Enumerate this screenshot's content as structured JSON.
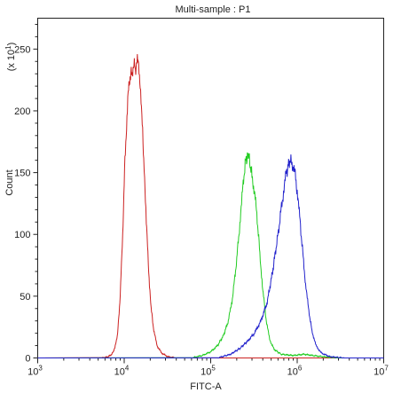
{
  "chart_data": {
    "type": "line",
    "title": "Multi-sample : P1",
    "xlabel": "FITC-A",
    "ylabel": "Count",
    "y_scale_note": "(x 10",
    "y_scale_exp": "1",
    "y_scale_close": ")",
    "x_scale": "log",
    "xlim": [
      1000,
      10000000
    ],
    "ylim": [
      0,
      275
    ],
    "x_ticks": [
      {
        "value": 1000,
        "base": "10",
        "exp": "3"
      },
      {
        "value": 10000,
        "base": "10",
        "exp": "4"
      },
      {
        "value": 100000,
        "base": "10",
        "exp": "5"
      },
      {
        "value": 1000000,
        "base": "10",
        "exp": "6"
      },
      {
        "value": 10000000,
        "base": "10",
        "exp": "7"
      }
    ],
    "y_ticks": [
      0,
      50,
      100,
      150,
      200,
      250
    ],
    "grid": false,
    "series": [
      {
        "color": "#cc2222",
        "points": [
          [
            5500,
            0
          ],
          [
            6500,
            1
          ],
          [
            7200,
            3
          ],
          [
            7800,
            8
          ],
          [
            8400,
            20
          ],
          [
            9000,
            50
          ],
          [
            9600,
            100
          ],
          [
            10200,
            160
          ],
          [
            11000,
            210
          ],
          [
            11700,
            228
          ],
          [
            12400,
            232
          ],
          [
            13100,
            238
          ],
          [
            13600,
            233
          ],
          [
            14200,
            240
          ],
          [
            14700,
            235
          ],
          [
            15300,
            222
          ],
          [
            16000,
            195
          ],
          [
            17000,
            155
          ],
          [
            18000,
            110
          ],
          [
            19200,
            70
          ],
          [
            20500,
            40
          ],
          [
            22000,
            22
          ],
          [
            24000,
            10
          ],
          [
            27000,
            4
          ],
          [
            32000,
            1
          ],
          [
            40000,
            0
          ]
        ]
      },
      {
        "color": "#22cc22",
        "points": [
          [
            60000,
            0
          ],
          [
            80000,
            2
          ],
          [
            100000,
            5
          ],
          [
            120000,
            10
          ],
          [
            140000,
            18
          ],
          [
            160000,
            30
          ],
          [
            180000,
            50
          ],
          [
            200000,
            80
          ],
          [
            215000,
            105
          ],
          [
            230000,
            130
          ],
          [
            250000,
            158
          ],
          [
            265000,
            163
          ],
          [
            280000,
            160
          ],
          [
            300000,
            148
          ],
          [
            320000,
            135
          ],
          [
            345000,
            112
          ],
          [
            370000,
            85
          ],
          [
            400000,
            55
          ],
          [
            440000,
            30
          ],
          [
            480000,
            15
          ],
          [
            540000,
            7
          ],
          [
            650000,
            3
          ],
          [
            900000,
            2
          ],
          [
            1200000,
            3
          ],
          [
            1500000,
            2
          ],
          [
            2000000,
            1
          ],
          [
            3000000,
            0
          ]
        ]
      },
      {
        "color": "#2222cc",
        "points": [
          [
            120000,
            0
          ],
          [
            170000,
            3
          ],
          [
            220000,
            8
          ],
          [
            270000,
            14
          ],
          [
            320000,
            20
          ],
          [
            380000,
            30
          ],
          [
            450000,
            45
          ],
          [
            520000,
            70
          ],
          [
            600000,
            100
          ],
          [
            680000,
            130
          ],
          [
            750000,
            150
          ],
          [
            820000,
            160
          ],
          [
            880000,
            157
          ],
          [
            940000,
            150
          ],
          [
            1000000,
            135
          ],
          [
            1080000,
            110
          ],
          [
            1160000,
            85
          ],
          [
            1250000,
            60
          ],
          [
            1350000,
            40
          ],
          [
            1480000,
            22
          ],
          [
            1650000,
            10
          ],
          [
            1900000,
            4
          ],
          [
            2400000,
            1
          ],
          [
            3500000,
            0
          ]
        ]
      }
    ]
  }
}
